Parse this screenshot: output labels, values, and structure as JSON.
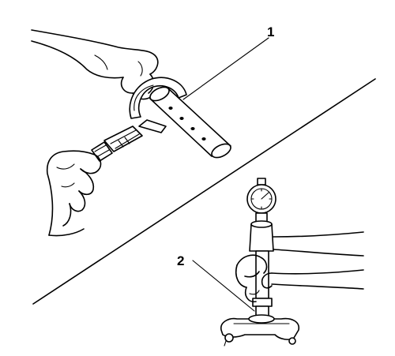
{
  "callouts": [
    {
      "id": "1",
      "label": "1"
    },
    {
      "id": "2",
      "label": "2"
    }
  ]
}
